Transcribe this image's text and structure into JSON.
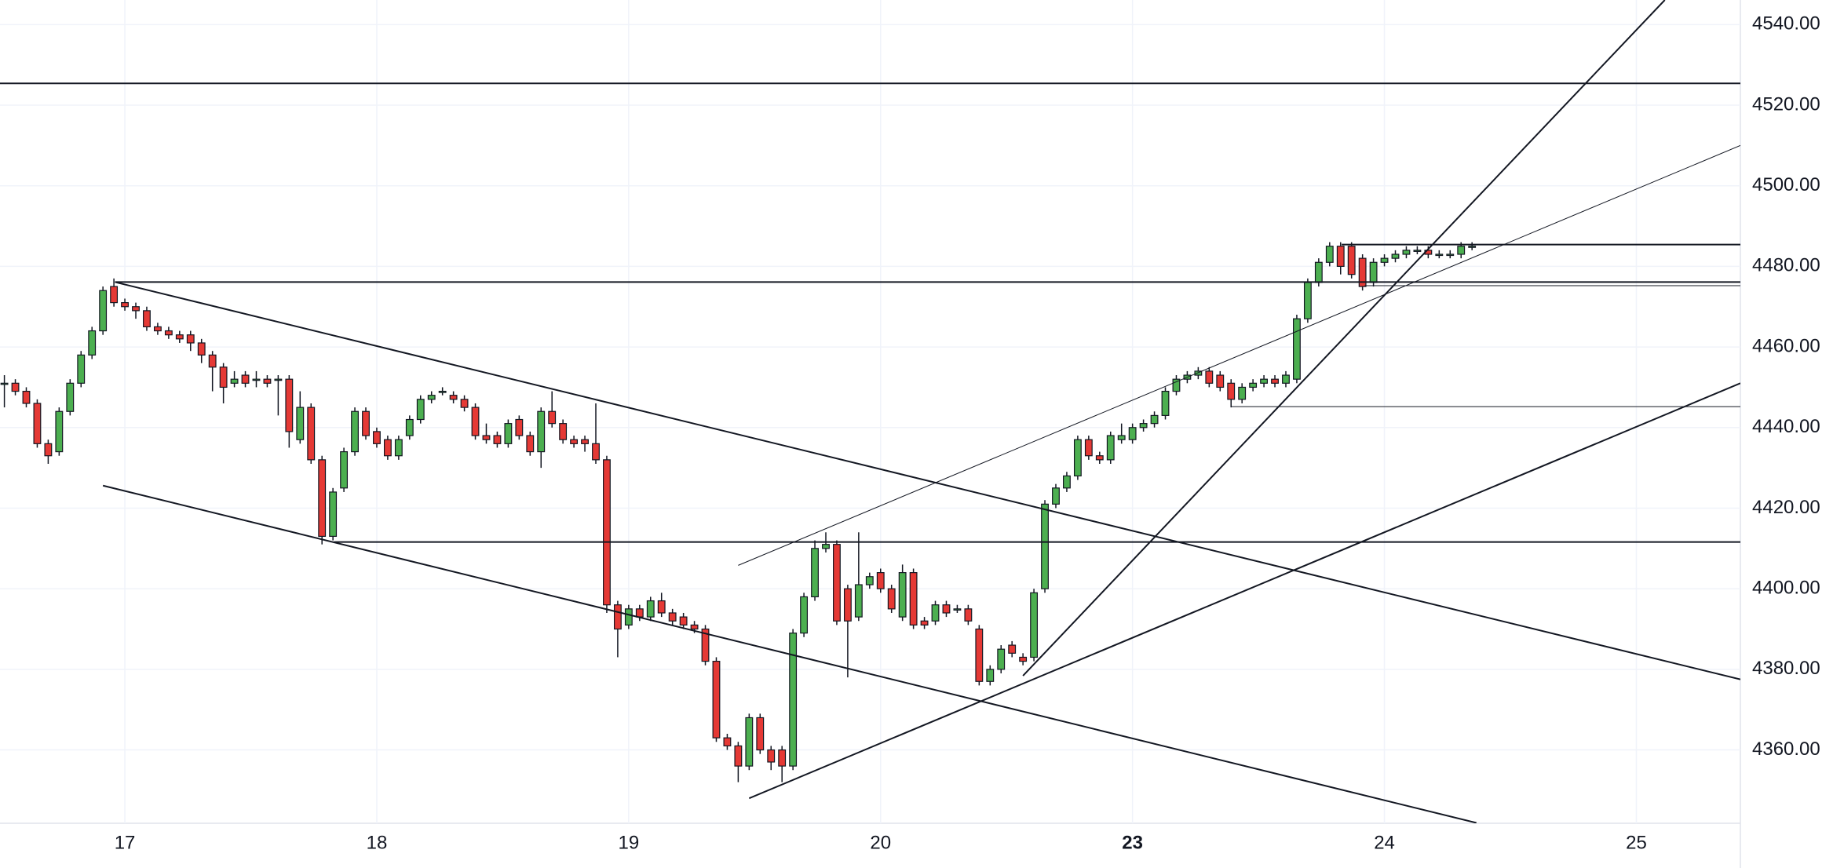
{
  "chart_data": {
    "type": "candlestick",
    "up_color": "#4caf50",
    "down_color": "#e53935",
    "outline_color": "#131722",
    "grid": true,
    "xlim": [
      -0.4,
      158.5
    ],
    "ylim": [
      4341.8,
      4546.1
    ],
    "xticks": [
      {
        "value": 11,
        "label": "17"
      },
      {
        "value": 34,
        "label": "18"
      },
      {
        "value": 57,
        "label": "19"
      },
      {
        "value": 80,
        "label": "20"
      },
      {
        "value": 103,
        "label": "23",
        "bold": true
      },
      {
        "value": 126,
        "label": "24"
      },
      {
        "value": 149,
        "label": "25"
      }
    ],
    "yticks": [
      {
        "value": 4360,
        "label": "4360.00"
      },
      {
        "value": 4380,
        "label": "4380.00"
      },
      {
        "value": 4400,
        "label": "4400.00"
      },
      {
        "value": 4420,
        "label": "4420.00"
      },
      {
        "value": 4440,
        "label": "4440.00"
      },
      {
        "value": 4460,
        "label": "4460.00"
      },
      {
        "value": 4480,
        "label": "4480.00"
      },
      {
        "value": 4500,
        "label": "4500.00"
      },
      {
        "value": 4520,
        "label": "4520.00"
      },
      {
        "value": 4540,
        "label": "4540.00"
      }
    ],
    "open": [
      4451,
      4451,
      4449,
      4446,
      4436,
      4434,
      4444,
      4451,
      4458,
      4464,
      4475,
      4471,
      4470,
      4469,
      4465,
      4464,
      4463,
      4463,
      4461,
      4458,
      4455,
      4451,
      4453,
      4452,
      4452,
      4452,
      4452,
      4437,
      4445,
      4432,
      4413,
      4425,
      4434,
      4444,
      4439,
      4437,
      4433,
      4438,
      4442,
      4447,
      4449,
      4448,
      4447,
      4445,
      4438,
      4438,
      4436,
      4442,
      4438,
      4434,
      4444,
      4441,
      4437,
      4437,
      4436,
      4432,
      4396,
      4391,
      4395,
      4393,
      4397,
      4394,
      4393,
      4391,
      4390,
      4382,
      4363,
      4361,
      4356,
      4368,
      4360,
      4360,
      4356,
      4389,
      4398,
      4410,
      4411,
      4400,
      4393,
      4401,
      4404,
      4400,
      4393,
      4404,
      4392,
      4392,
      4396,
      4395,
      4395,
      4390,
      4377,
      4380,
      4386,
      4383,
      4383,
      4400,
      4421,
      4425,
      4428,
      4437,
      4433,
      4432,
      4437,
      4437,
      4440,
      4441,
      4443,
      4449,
      4452,
      4453,
      4454,
      4453,
      4451,
      4447,
      4450,
      4451,
      4452,
      4451,
      4452,
      4467,
      4476,
      4481,
      4485,
      4485,
      4482,
      4476,
      4481,
      4482,
      4483,
      4484,
      4484,
      4483,
      4483,
      4483,
      4485
    ],
    "high": [
      4453,
      4452,
      4450,
      4447,
      4437,
      4445,
      4452,
      4459,
      4465,
      4475,
      4477,
      4472,
      4471,
      4470,
      4466,
      4465,
      4464,
      4464,
      4462,
      4459,
      4456,
      4454,
      4454,
      4454,
      4453,
      4453,
      4453,
      4449,
      4446,
      4433,
      4425,
      4435,
      4445,
      4445,
      4440,
      4438,
      4438,
      4443,
      4448,
      4449,
      4450,
      4449,
      4448,
      4446,
      4441,
      4439,
      4442,
      4443,
      4439,
      4445,
      4449,
      4442,
      4438,
      4438,
      4446,
      4433,
      4397,
      4396,
      4396,
      4398,
      4399,
      4395,
      4394,
      4392,
      4391,
      4383,
      4364,
      4362,
      4369,
      4369,
      4361,
      4361,
      4390,
      4399,
      4412,
      4414,
      4412,
      4401,
      4414,
      4404,
      4405,
      4401,
      4406,
      4405,
      4393,
      4397,
      4397,
      4396,
      4396,
      4391,
      4381,
      4386,
      4387,
      4384,
      4400,
      4422,
      4426,
      4429,
      4438,
      4438,
      4434,
      4439,
      4441,
      4441,
      4442,
      4444,
      4450,
      4453,
      4454,
      4455,
      4455,
      4454,
      4452,
      4451,
      4452,
      4453,
      4453,
      4454,
      4468,
      4477,
      4482,
      4486,
      4486,
      4486,
      4483,
      4482,
      4483,
      4484,
      4485,
      4485,
      4485,
      4484,
      4484,
      4486,
      4486
    ],
    "low": [
      4445,
      4448,
      4445,
      4435,
      4431,
      4433,
      4443,
      4450,
      4457,
      4463,
      4470,
      4469,
      4467,
      4464,
      4463,
      4462,
      4461,
      4459,
      4456,
      4449,
      4446,
      4450,
      4450,
      4450,
      4450,
      4443,
      4435,
      4436,
      4431,
      4411,
      4412,
      4424,
      4433,
      4437,
      4435,
      4432,
      4432,
      4437,
      4441,
      4446,
      4448,
      4446,
      4444,
      4437,
      4436,
      4435,
      4435,
      4437,
      4433,
      4430,
      4440,
      4436,
      4435,
      4434,
      4431,
      4394,
      4383,
      4390,
      4392,
      4392,
      4393,
      4391,
      4390,
      4389,
      4381,
      4362,
      4360,
      4352,
      4355,
      4359,
      4355,
      4352,
      4355,
      4388,
      4397,
      4409,
      4391,
      4378,
      4392,
      4400,
      4399,
      4394,
      4392,
      4390,
      4390,
      4391,
      4393,
      4394,
      4391,
      4376,
      4376,
      4379,
      4383,
      4381,
      4382,
      4399,
      4420,
      4424,
      4427,
      4432,
      4431,
      4431,
      4436,
      4436,
      4439,
      4440,
      4442,
      4448,
      4451,
      4452,
      4450,
      4449,
      4445,
      4446,
      4449,
      4450,
      4450,
      4450,
      4451,
      4466,
      4475,
      4480,
      4478,
      4477,
      4474,
      4475,
      4480,
      4481,
      4482,
      4483,
      4482,
      4482,
      4482,
      4482,
      4484
    ],
    "close": [
      4451,
      4449,
      4446,
      4436,
      4433,
      4444,
      4451,
      4458,
      4464,
      4474,
      4471,
      4470,
      4469,
      4465,
      4464,
      4463,
      4462,
      4461,
      4458,
      4455,
      4450,
      4452,
      4451,
      4452,
      4451,
      4452,
      4439,
      4445,
      4432,
      4413,
      4424,
      4434,
      4444,
      4438,
      4436,
      4433,
      4437,
      4442,
      4447,
      4448,
      4449,
      4447,
      4445,
      4438,
      4437,
      4436,
      4441,
      4438,
      4434,
      4444,
      4441,
      4437,
      4436,
      4436,
      4432,
      4396,
      4390,
      4395,
      4393,
      4397,
      4394,
      4392,
      4391,
      4390,
      4382,
      4363,
      4361,
      4356,
      4368,
      4360,
      4357,
      4356,
      4389,
      4398,
      4410,
      4411,
      4392,
      4392,
      4401,
      4403,
      4400,
      4395,
      4404,
      4391,
      4391,
      4396,
      4394,
      4395,
      4392,
      4377,
      4380,
      4385,
      4384,
      4382,
      4399,
      4421,
      4425,
      4428,
      4437,
      4433,
      4432,
      4438,
      4438,
      4440,
      4441,
      4443,
      4449,
      4452,
      4453,
      4454,
      4451,
      4450,
      4447,
      4450,
      4451,
      4452,
      4451,
      4453,
      4467,
      4476,
      4481,
      4485,
      4480,
      4478,
      4475,
      4481,
      4482,
      4483,
      4484,
      4484,
      4483,
      4483,
      4483,
      4485,
      4485
    ],
    "lines": [
      {
        "x": [
          -0.4,
          158.5
        ],
        "y": [
          4525.4,
          4525.4
        ],
        "width": 2
      },
      {
        "x": [
          10.1,
          158.5
        ],
        "y": [
          4476.1,
          4476.1
        ],
        "width": 2
      },
      {
        "x": [
          30.1,
          158.5
        ],
        "y": [
          4411.6,
          4411.6
        ],
        "width": 2
      },
      {
        "x": [
          122.1,
          158.5
        ],
        "y": [
          4485.4,
          4485.4
        ],
        "width": 2
      },
      {
        "x": [
          124.2,
          158.5
        ],
        "y": [
          4475.2,
          4475.2
        ],
        "width": 1
      },
      {
        "x": [
          112,
          158.5
        ],
        "y": [
          4445.2,
          4445.2
        ],
        "width": 1
      },
      {
        "x": [
          10.1,
          158.5
        ],
        "y": [
          4476.1,
          4377.5
        ],
        "width": 2
      },
      {
        "x": [
          9,
          134.4
        ],
        "y": [
          4425.6,
          4341.9
        ],
        "width": 2
      },
      {
        "x": [
          68,
          158.5
        ],
        "y": [
          4348,
          4451
        ],
        "width": 2
      },
      {
        "x": [
          93,
          151.6
        ],
        "y": [
          4378.4,
          4546.1
        ],
        "width": 2
      },
      {
        "x": [
          67,
          158.5
        ],
        "y": [
          4405.8,
          4510
        ],
        "width": 1
      }
    ]
  }
}
